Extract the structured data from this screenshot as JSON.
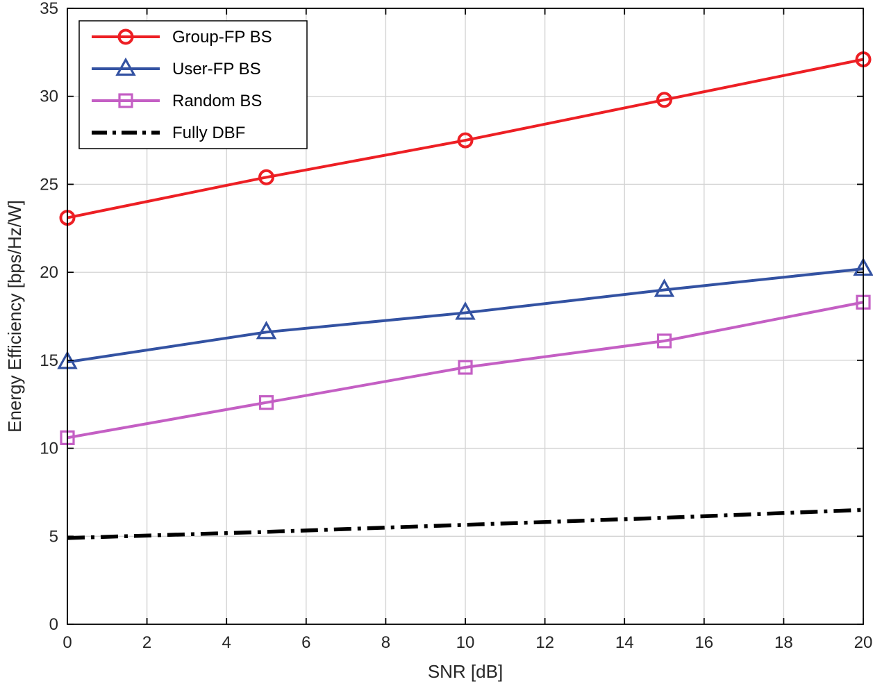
{
  "figure": {
    "background": "#ffffff",
    "axes_color": "#000000",
    "grid_color": "#d4d4d4",
    "tick_label_color": "#262626"
  },
  "chart_data": {
    "type": "line",
    "title": "",
    "xlabel": "SNR [dB]",
    "ylabel": "Energy Efficiency [bps/Hz/W]",
    "x": [
      0,
      5,
      10,
      15,
      20
    ],
    "xlim": [
      0,
      20
    ],
    "ylim": [
      0,
      35
    ],
    "xticks": [
      0,
      2,
      4,
      6,
      8,
      10,
      12,
      14,
      16,
      18,
      20
    ],
    "yticks": [
      0,
      5,
      10,
      15,
      20,
      25,
      30,
      35
    ],
    "grid": true,
    "legend_position": "top-left",
    "series": [
      {
        "name": "Group-FP BS",
        "color": "#ed1f24",
        "marker": "circle",
        "linestyle": "solid",
        "values": [
          23.1,
          25.4,
          27.5,
          29.8,
          32.1
        ]
      },
      {
        "name": "User-FP BS",
        "color": "#3352a2",
        "marker": "triangle",
        "linestyle": "solid",
        "values": [
          14.9,
          16.6,
          17.7,
          19.0,
          20.2
        ]
      },
      {
        "name": "Random BS",
        "color": "#c45fc4",
        "marker": "square",
        "linestyle": "solid",
        "values": [
          10.6,
          12.6,
          14.6,
          16.1,
          18.3
        ]
      },
      {
        "name": "Fully DBF",
        "color": "#000000",
        "marker": "none",
        "linestyle": "dashdot",
        "values": [
          4.9,
          5.25,
          5.65,
          6.05,
          6.5
        ]
      }
    ]
  }
}
